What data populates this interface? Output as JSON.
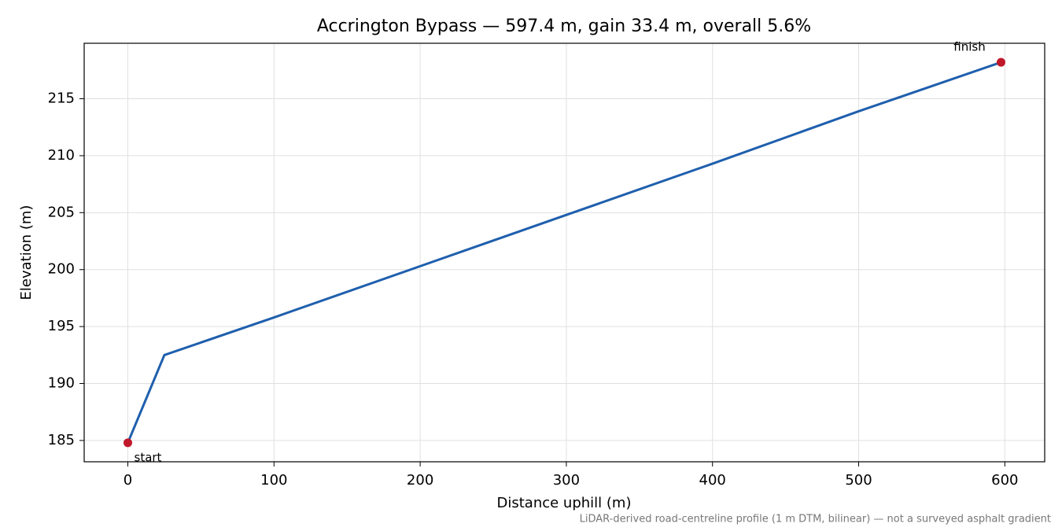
{
  "chart_data": {
    "type": "line",
    "title": "Accrington Bypass — 597.4 m, gain 33.4 m, overall 5.6%",
    "xlabel": "Distance uphill (m)",
    "ylabel": "Elevation (m)",
    "x": [
      0,
      25,
      100,
      200,
      300,
      400,
      500,
      597.4
    ],
    "values": [
      184.8,
      192.5,
      195.8,
      200.3,
      204.8,
      209.3,
      213.9,
      218.2
    ],
    "color": "#1f5fad",
    "markers": [
      {
        "label": "start",
        "x": 0,
        "y": 184.8
      },
      {
        "label": "finish",
        "x": 597.4,
        "y": 218.2
      }
    ],
    "marker_color": "#c0182a",
    "xlim": [
      -29.87,
      627.27
    ],
    "xticks": [
      0,
      100,
      200,
      300,
      400,
      500,
      600
    ],
    "ylim": [
      183.13,
      219.87
    ],
    "yticks": [
      185,
      190,
      195,
      200,
      205,
      210,
      215
    ],
    "grid": true,
    "note": "LiDAR-derived road-centreline profile (1 m DTM, bilinear) — not a surveyed asphalt gradient"
  }
}
